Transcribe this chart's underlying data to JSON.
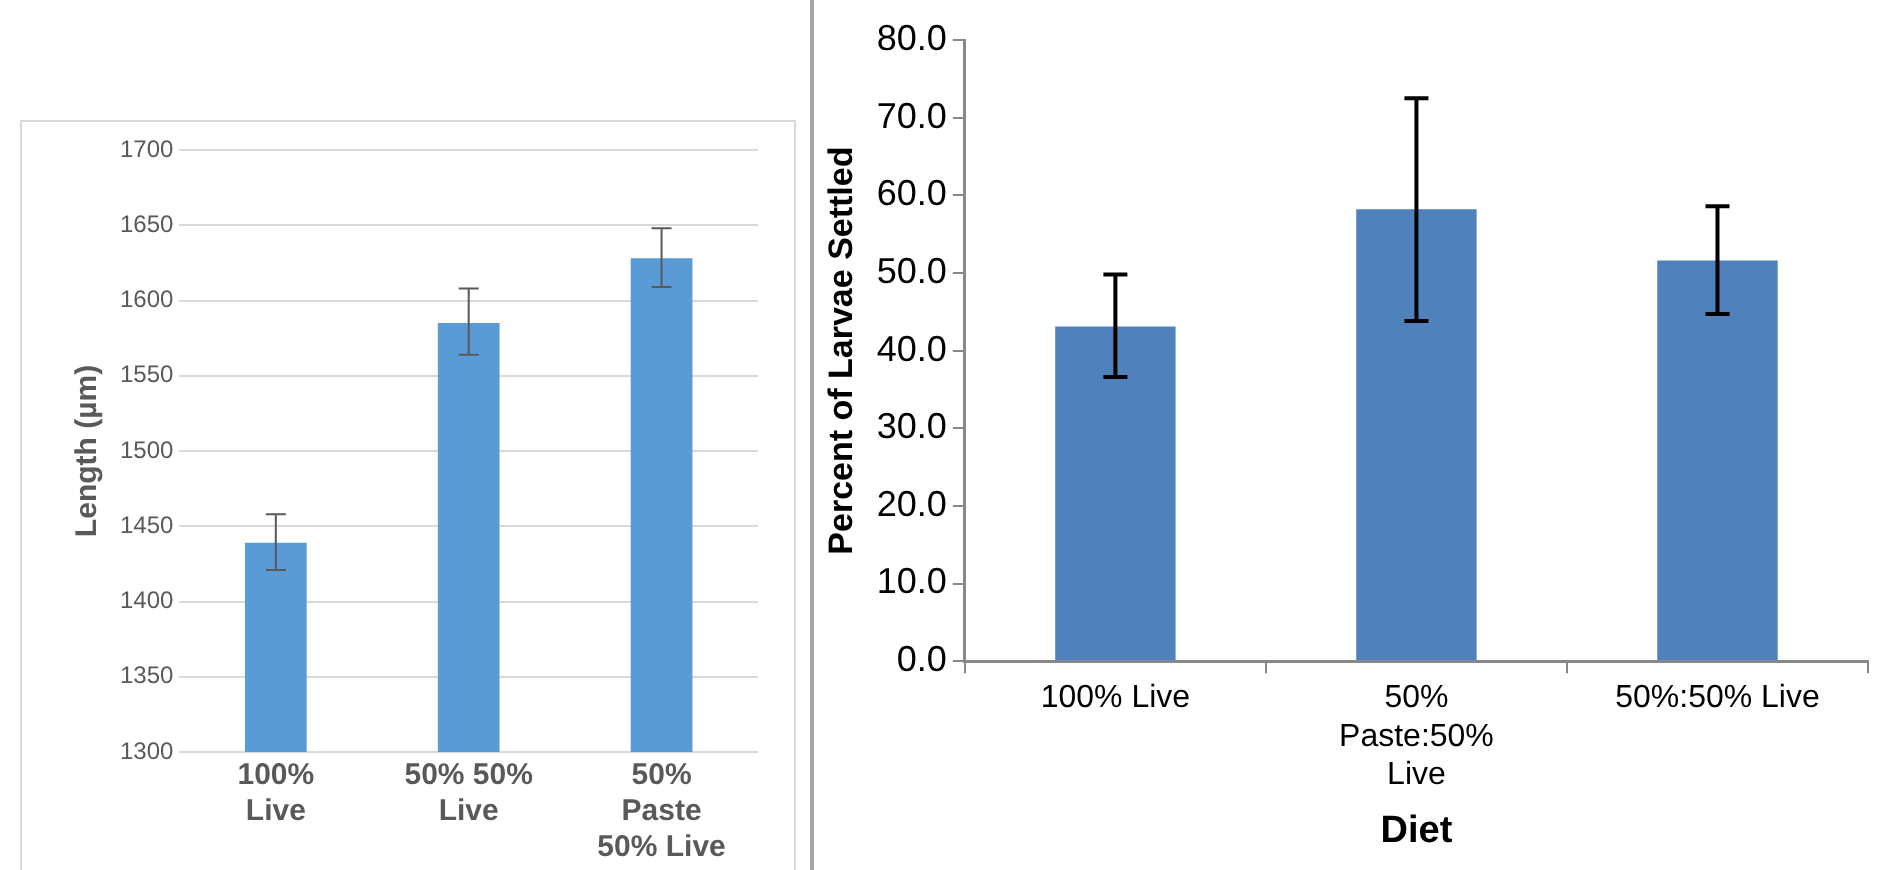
{
  "chart_data": [
    {
      "type": "bar",
      "categories": [
        "100% Live",
        "50% 50% Live",
        "50% Paste 50% Live"
      ],
      "values": [
        1439,
        1585,
        1628
      ],
      "color": "#5b9bd5",
      "errors": [
        [
          1421,
          1458
        ],
        [
          1564,
          1608
        ],
        [
          1609,
          1648
        ]
      ],
      "ylabel": "Length (µm)",
      "ylim": [
        1300,
        1700
      ],
      "yticks": [
        1300,
        1350,
        1400,
        1450,
        1500,
        1550,
        1600,
        1650,
        1700
      ],
      "grid": "y"
    },
    {
      "type": "bar",
      "categories": [
        "100% Live",
        "50% Paste:50% Live",
        "50%:50% Live"
      ],
      "values": [
        43.1,
        58.2,
        51.6
      ],
      "color": "#4f81bd",
      "errors": [
        [
          36.6,
          49.8
        ],
        [
          43.8,
          72.5
        ],
        [
          44.7,
          58.6
        ]
      ],
      "xlabel": "Diet",
      "ylabel": "Percent of Larvae Settled",
      "ylim": [
        0,
        80
      ],
      "yticks": [
        {
          "value": 0,
          "label": "0.0"
        },
        {
          "value": 10,
          "label": "10.0"
        },
        {
          "value": 20,
          "label": "20.0"
        },
        {
          "value": 30,
          "label": "30.0"
        },
        {
          "value": 40,
          "label": "40.0"
        },
        {
          "value": 50,
          "label": "50.0"
        },
        {
          "value": 60,
          "label": "60.0"
        },
        {
          "value": 70,
          "label": "70.0"
        },
        {
          "value": 80,
          "label": "80.0"
        }
      ]
    }
  ]
}
